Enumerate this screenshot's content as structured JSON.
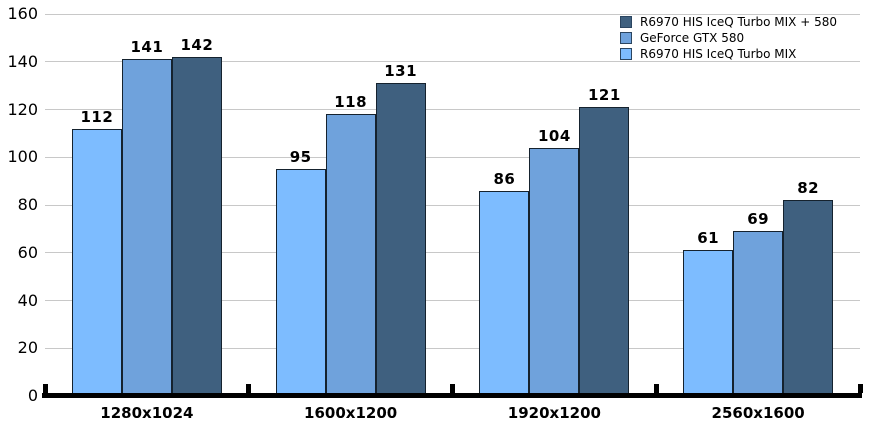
{
  "chart_data": {
    "type": "bar",
    "title": "",
    "xlabel": "",
    "ylabel": "",
    "categories": [
      "1280x1024",
      "1600x1200",
      "1920x1200",
      "2560x1600"
    ],
    "series": [
      {
        "name": "R6970 HIS IceQ Turbo MIX",
        "color": "#7dbcff",
        "values": [
          112,
          95,
          86,
          61
        ]
      },
      {
        "name": "GeForce GTX 580",
        "color": "#6fa2dc",
        "values": [
          141,
          118,
          104,
          69
        ]
      },
      {
        "name": "R6970 HIS IceQ Turbo MIX + 580",
        "color": "#3f607f",
        "values": [
          142,
          131,
          121,
          82
        ]
      }
    ],
    "legend_items": [
      {
        "label": "R6970 HIS IceQ Turbo MIX + 580",
        "color": "#3f607f"
      },
      {
        "label": "GeForce GTX 580",
        "color": "#6fa2dc"
      },
      {
        "label": "R6970 HIS IceQ Turbo MIX",
        "color": "#7dbcff"
      }
    ],
    "legend_position": "top-right",
    "ylim": [
      0,
      160
    ],
    "yticks": [
      0,
      20,
      40,
      60,
      80,
      100,
      120,
      140,
      160
    ],
    "grid": true,
    "data_labels": true
  },
  "colors": {
    "background": "#ffffff",
    "gridline": "#c8c8c8",
    "axis": "#000000",
    "bar_border": "#15222e",
    "text": "#000000"
  }
}
